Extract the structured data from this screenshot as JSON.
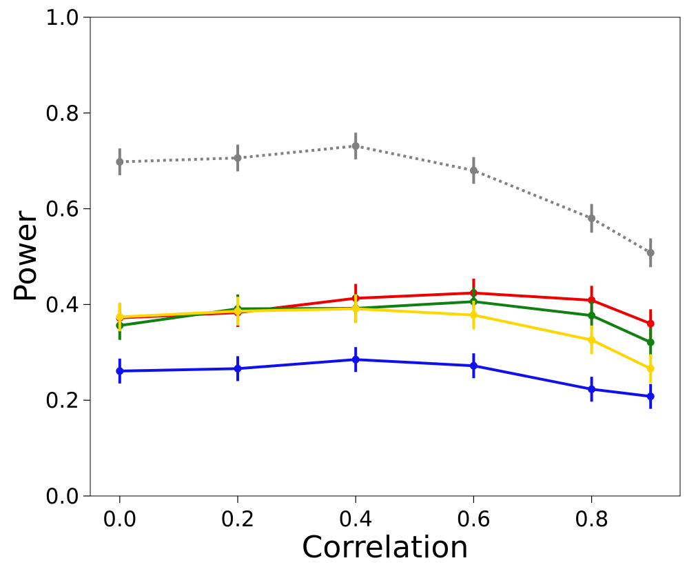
{
  "chart_data": {
    "type": "line",
    "title": "",
    "xlabel": "Correlation",
    "ylabel": "Power",
    "x": [
      0.0,
      0.2,
      0.4,
      0.6,
      0.8,
      0.9
    ],
    "xlim": [
      -0.05,
      0.95
    ],
    "ylim": [
      0.0,
      1.0
    ],
    "xticks": [
      "0.0",
      "0.2",
      "0.4",
      "0.6",
      "0.8"
    ],
    "yticks": [
      "0.0",
      "0.2",
      "0.4",
      "0.6",
      "0.8",
      "1.0"
    ],
    "grid": false,
    "legend": "none",
    "series": [
      {
        "name": "gray-dotted",
        "color": "#808080",
        "style": "dotted",
        "values": [
          0.698,
          0.706,
          0.731,
          0.68,
          0.58,
          0.508
        ],
        "errors": [
          0.028,
          0.028,
          0.028,
          0.028,
          0.03,
          0.03
        ]
      },
      {
        "name": "red",
        "color": "#ee0000",
        "style": "solid",
        "values": [
          0.372,
          0.383,
          0.413,
          0.424,
          0.409,
          0.36
        ],
        "errors": [
          0.03,
          0.03,
          0.03,
          0.03,
          0.03,
          0.03
        ]
      },
      {
        "name": "green",
        "color": "#108010",
        "style": "solid",
        "values": [
          0.356,
          0.391,
          0.392,
          0.406,
          0.377,
          0.321
        ],
        "errors": [
          0.03,
          0.03,
          0.03,
          0.03,
          0.03,
          0.03
        ]
      },
      {
        "name": "yellow",
        "color": "#ffd700",
        "style": "solid",
        "values": [
          0.374,
          0.386,
          0.391,
          0.378,
          0.326,
          0.266
        ],
        "errors": [
          0.03,
          0.03,
          0.03,
          0.03,
          0.03,
          0.03
        ]
      },
      {
        "name": "blue",
        "color": "#1010ee",
        "style": "solid",
        "values": [
          0.261,
          0.266,
          0.285,
          0.272,
          0.223,
          0.208
        ],
        "errors": [
          0.026,
          0.026,
          0.026,
          0.026,
          0.026,
          0.026
        ]
      }
    ]
  }
}
